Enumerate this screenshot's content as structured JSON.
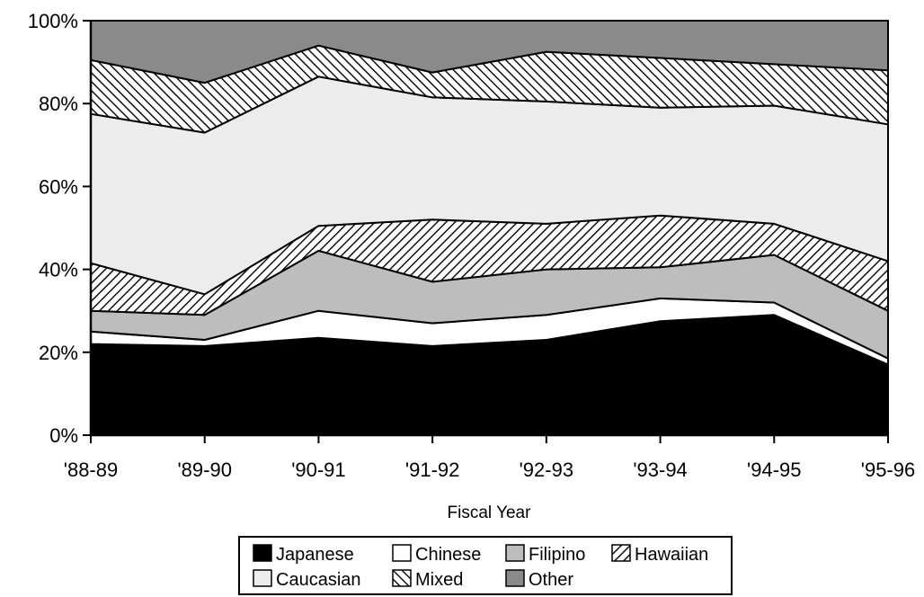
{
  "chart_data": {
    "type": "area",
    "stacked": true,
    "normalized_percent": true,
    "xlabel": "Fiscal Year",
    "ylabel": "",
    "categories": [
      "'88-89",
      "'89-90",
      "'90-91",
      "'91-92",
      "'92-93",
      "'93-94",
      "'94-95",
      "'95-96"
    ],
    "ylim": [
      0,
      100
    ],
    "yticks": [
      0,
      20,
      40,
      60,
      80,
      100
    ],
    "ytick_labels": [
      "0%",
      "20%",
      "40%",
      "60%",
      "80%",
      "100%"
    ],
    "grid": false,
    "legend_position": "bottom",
    "series": [
      {
        "name": "Japanese",
        "fill": "#000000",
        "pattern": "solid",
        "values": [
          22,
          21.5,
          23.5,
          21.5,
          23,
          27.5,
          29,
          17
        ]
      },
      {
        "name": "Chinese",
        "fill": "#ffffff",
        "pattern": "solid",
        "values": [
          3,
          1.5,
          6.5,
          5.5,
          6,
          5.5,
          3,
          1.5
        ]
      },
      {
        "name": "Filipino",
        "fill": "#bdbdbd",
        "pattern": "solid",
        "values": [
          5,
          6,
          14.5,
          10,
          11,
          7.5,
          11.5,
          11.5
        ]
      },
      {
        "name": "Hawaiian",
        "fill": "#9a9a9a",
        "pattern": "diagonal-up",
        "values": [
          11.5,
          5,
          6,
          15,
          11,
          12.5,
          7.5,
          12
        ]
      },
      {
        "name": "Caucasian",
        "fill": "#ececec",
        "pattern": "solid",
        "values": [
          36,
          39,
          36,
          29.5,
          29.5,
          26,
          28.5,
          33
        ]
      },
      {
        "name": "Mixed",
        "fill": "#9a9a9a",
        "pattern": "diagonal-down",
        "values": [
          13,
          12,
          7.5,
          6,
          12,
          12,
          10,
          13
        ]
      },
      {
        "name": "Other",
        "fill": "#8a8a8a",
        "pattern": "solid",
        "values": [
          9,
          15,
          6,
          12.5,
          7.5,
          9,
          10.5,
          12
        ]
      }
    ]
  }
}
